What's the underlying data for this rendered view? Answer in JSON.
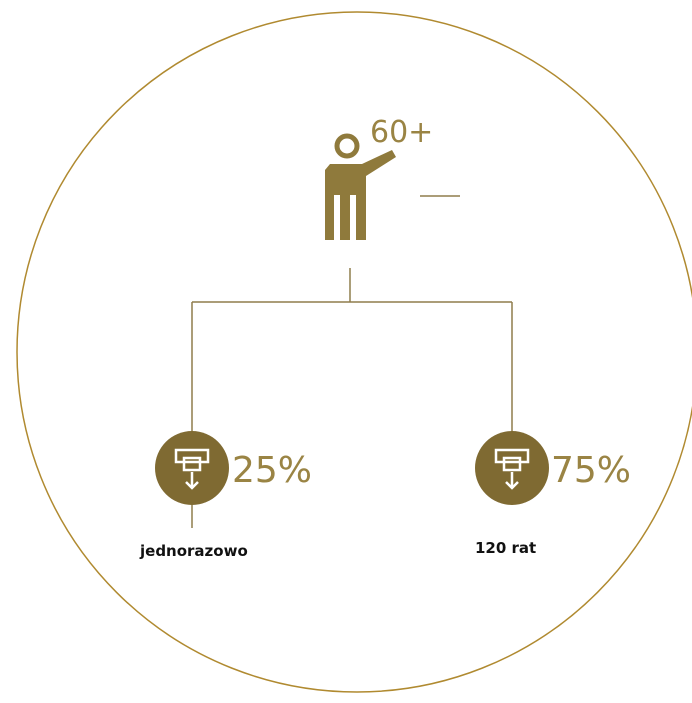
{
  "root": {
    "label": "60+"
  },
  "branches": [
    {
      "value_text": "25%",
      "label": "jednorazowo"
    },
    {
      "value_text": "75%",
      "label": "120 rat"
    }
  ]
}
